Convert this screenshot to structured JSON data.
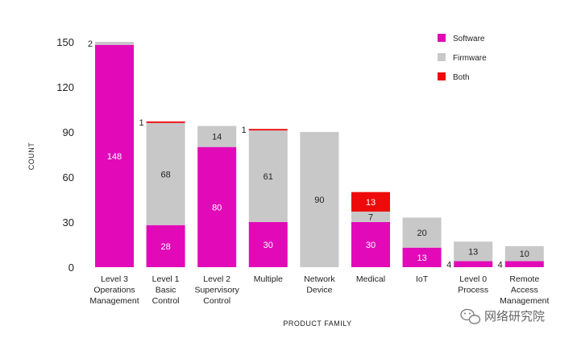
{
  "chart_data": {
    "type": "bar",
    "stacked": true,
    "xlabel": "PRODUCT FAMILY",
    "ylabel": "COUNT",
    "ylim": [
      0,
      150
    ],
    "yticks": [
      0,
      30,
      60,
      90,
      120,
      150
    ],
    "grid": false,
    "legend_position": "top-right",
    "categories": [
      [
        "Level 3",
        "Operations",
        "Management"
      ],
      [
        "Level 1",
        "Basic",
        "Control"
      ],
      [
        "Level 2",
        "Supervisory",
        "Control"
      ],
      [
        "Multiple"
      ],
      [
        "Network",
        "Device"
      ],
      [
        "Medical"
      ],
      [
        "IoT"
      ],
      [
        "Level 0",
        "Process"
      ],
      [
        "Remote",
        "Access",
        "Management"
      ]
    ],
    "series": [
      {
        "name": "Software",
        "color": "#e20ab8",
        "label_color": "#ffffff",
        "values": [
          148,
          28,
          80,
          30,
          0,
          30,
          13,
          4,
          4
        ]
      },
      {
        "name": "Firmware",
        "color": "#c8c8c8",
        "label_color": "#222222",
        "values": [
          2,
          68,
          14,
          61,
          90,
          7,
          20,
          13,
          10
        ]
      },
      {
        "name": "Both",
        "color": "#ee0a0a",
        "label_color": "#ffffff",
        "values": [
          0,
          1,
          0,
          1,
          0,
          13,
          0,
          0,
          0
        ]
      }
    ],
    "data_labels": [
      {
        "category": 0,
        "series": 0,
        "text": "148",
        "placement": "inside"
      },
      {
        "category": 0,
        "series": 1,
        "text": "2",
        "placement": "left"
      },
      {
        "category": 1,
        "series": 0,
        "text": "28",
        "placement": "inside"
      },
      {
        "category": 1,
        "series": 1,
        "text": "68",
        "placement": "inside"
      },
      {
        "category": 1,
        "series": 2,
        "text": "1",
        "placement": "left"
      },
      {
        "category": 2,
        "series": 0,
        "text": "80",
        "placement": "inside"
      },
      {
        "category": 2,
        "series": 1,
        "text": "14",
        "placement": "inside"
      },
      {
        "category": 3,
        "series": 0,
        "text": "30",
        "placement": "inside"
      },
      {
        "category": 3,
        "series": 1,
        "text": "61",
        "placement": "inside"
      },
      {
        "category": 3,
        "series": 2,
        "text": "1",
        "placement": "left"
      },
      {
        "category": 4,
        "series": 1,
        "text": "90",
        "placement": "inside"
      },
      {
        "category": 5,
        "series": 0,
        "text": "30",
        "placement": "inside"
      },
      {
        "category": 5,
        "series": 1,
        "text": "7",
        "placement": "inside"
      },
      {
        "category": 5,
        "series": 2,
        "text": "13",
        "placement": "inside"
      },
      {
        "category": 6,
        "series": 0,
        "text": "13",
        "placement": "inside"
      },
      {
        "category": 6,
        "series": 1,
        "text": "20",
        "placement": "inside"
      },
      {
        "category": 7,
        "series": 0,
        "text": "4",
        "placement": "left"
      },
      {
        "category": 7,
        "series": 1,
        "text": "13",
        "placement": "inside"
      },
      {
        "category": 8,
        "series": 0,
        "text": "4",
        "placement": "left"
      },
      {
        "category": 8,
        "series": 1,
        "text": "10",
        "placement": "inside"
      }
    ]
  },
  "watermark": {
    "text": "网络研究院",
    "icon": "wechat-icon"
  }
}
